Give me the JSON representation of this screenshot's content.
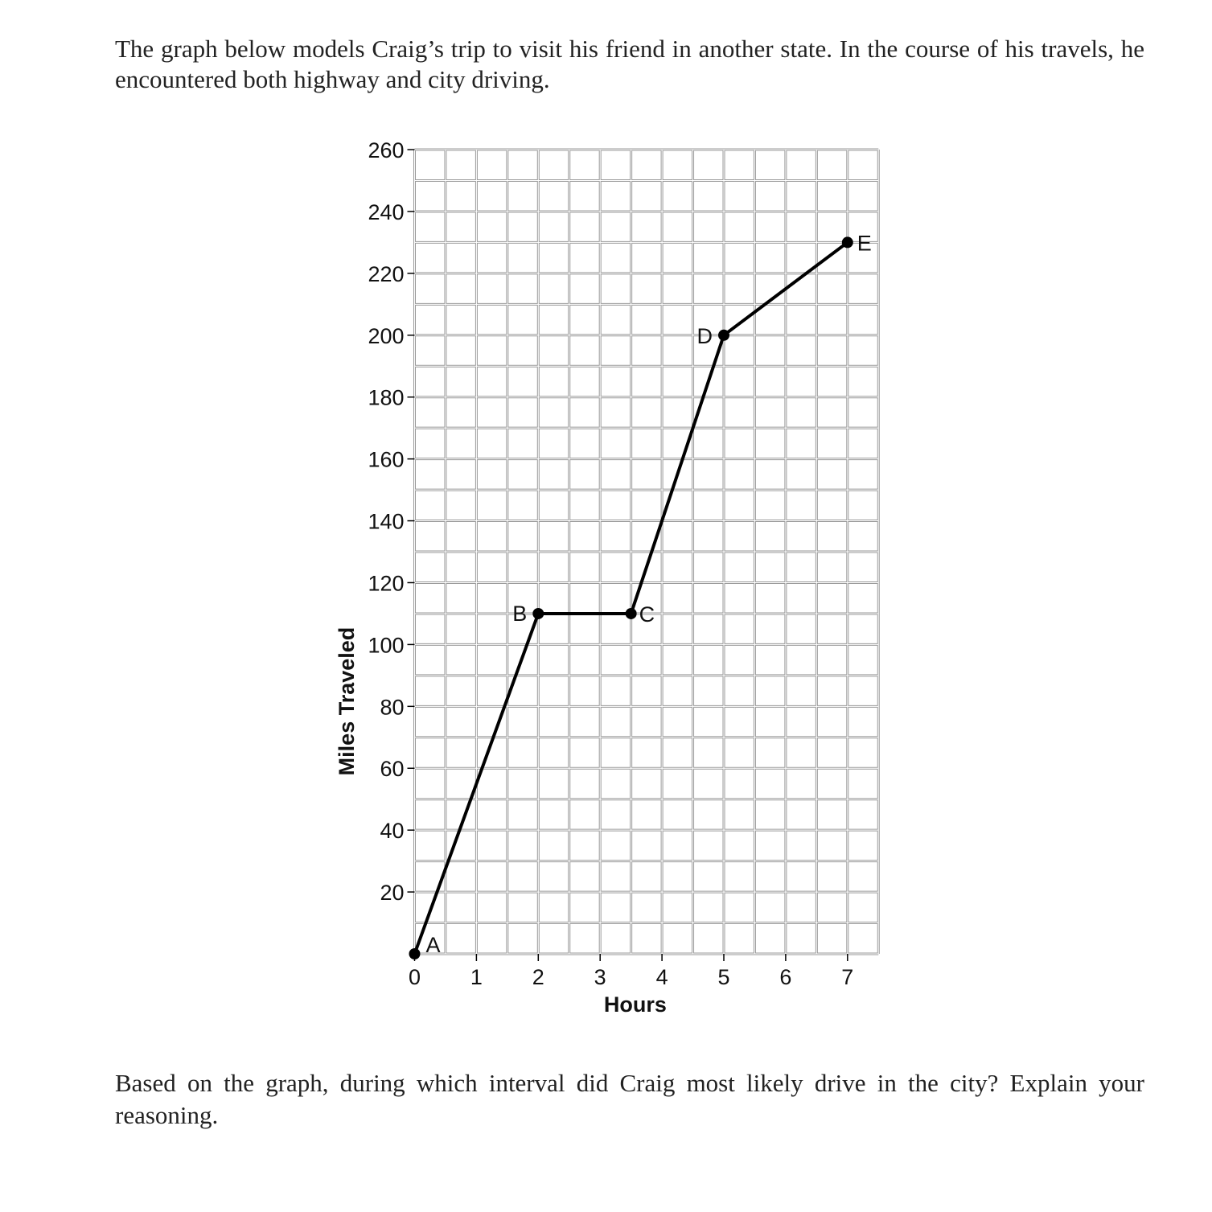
{
  "intro_text": "The graph below models Craig’s trip to visit his friend in another state. In the course of his travels, he encountered both highway and city driving.",
  "prompt_text": "Based on the graph, during which interval did Craig most likely drive in the city? Explain your reasoning.",
  "chart_data": {
    "type": "line",
    "title": "",
    "xlabel": "Hours",
    "ylabel": "Miles Traveled",
    "xlim": [
      0,
      7.5
    ],
    "ylim": [
      0,
      260
    ],
    "x_ticks": [
      0,
      1,
      2,
      3,
      4,
      5,
      6,
      7
    ],
    "y_ticks": [
      20,
      40,
      60,
      80,
      100,
      120,
      140,
      160,
      180,
      200,
      220,
      240,
      260
    ],
    "x_minor_step": 0.5,
    "y_minor_step": 10,
    "grid": true,
    "series": [
      {
        "points": [
          {
            "label": "A",
            "x": 0,
            "y": 0
          },
          {
            "label": "B",
            "x": 2,
            "y": 110
          },
          {
            "label": "C",
            "x": 3.5,
            "y": 110
          },
          {
            "label": "D",
            "x": 5,
            "y": 200
          },
          {
            "label": "E",
            "x": 7,
            "y": 230
          }
        ]
      }
    ],
    "colors": {
      "line": "#000000",
      "grid": "#9a9a9a",
      "text": "#111111"
    }
  }
}
